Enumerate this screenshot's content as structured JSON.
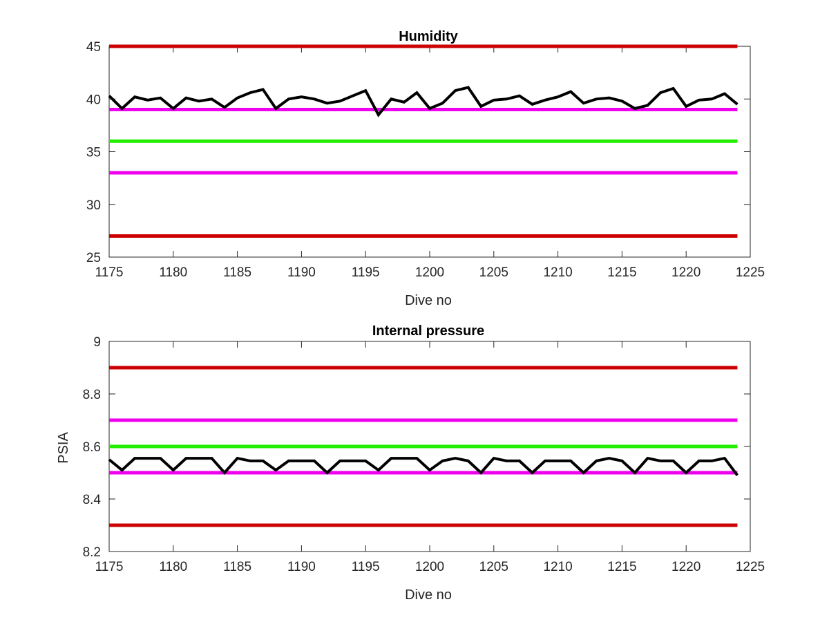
{
  "chart_data": [
    {
      "type": "line",
      "title": "Humidity",
      "xlabel": "Dive no",
      "ylabel": "",
      "xlim": [
        1175,
        1225
      ],
      "ylim": [
        25,
        45
      ],
      "xticks": [
        "1175",
        "1180",
        "1185",
        "1190",
        "1195",
        "1200",
        "1205",
        "1210",
        "1215",
        "1220",
        "1225"
      ],
      "yticks": [
        "25",
        "30",
        "35",
        "40",
        "45"
      ],
      "grid": false,
      "thresholds": [
        {
          "value": 45,
          "color": "#cc0000"
        },
        {
          "value": 39,
          "color": "#ee00ee"
        },
        {
          "value": 36,
          "color": "#22ee00"
        },
        {
          "value": 33,
          "color": "#ee00ee"
        },
        {
          "value": 27,
          "color": "#cc0000"
        }
      ],
      "threshold_range": [
        1175,
        1224
      ],
      "series": [
        {
          "color": "#000000",
          "x": [
            1175,
            1176,
            1177,
            1178,
            1179,
            1180,
            1181,
            1182,
            1183,
            1184,
            1185,
            1186,
            1187,
            1188,
            1189,
            1190,
            1191,
            1192,
            1193,
            1194,
            1195,
            1196,
            1197,
            1198,
            1199,
            1200,
            1201,
            1202,
            1203,
            1204,
            1205,
            1206,
            1207,
            1208,
            1209,
            1210,
            1211,
            1212,
            1213,
            1214,
            1215,
            1216,
            1217,
            1218,
            1219,
            1220,
            1221,
            1222,
            1223,
            1224
          ],
          "values": [
            40.3,
            39.1,
            40.2,
            39.9,
            40.1,
            39.1,
            40.1,
            39.8,
            40.0,
            39.2,
            40.1,
            40.6,
            40.9,
            39.1,
            40.0,
            40.2,
            40.0,
            39.6,
            39.8,
            40.3,
            40.8,
            38.5,
            40.0,
            39.7,
            40.6,
            39.1,
            39.6,
            40.8,
            41.1,
            39.3,
            39.9,
            40.0,
            40.3,
            39.5,
            39.9,
            40.2,
            40.7,
            39.6,
            40.0,
            40.1,
            39.8,
            39.1,
            39.4,
            40.6,
            41.0,
            39.3,
            39.9,
            40.0,
            40.5,
            39.5
          ]
        }
      ]
    },
    {
      "type": "line",
      "title": "Internal pressure",
      "xlabel": "Dive no",
      "ylabel": "PSIA",
      "xlim": [
        1175,
        1225
      ],
      "ylim": [
        8.2,
        9.0
      ],
      "xticks": [
        "1175",
        "1180",
        "1185",
        "1190",
        "1195",
        "1200",
        "1205",
        "1210",
        "1215",
        "1220",
        "1225"
      ],
      "yticks": [
        "8.2",
        "8.4",
        "8.6",
        "8.8",
        "9"
      ],
      "grid": false,
      "thresholds": [
        {
          "value": 8.9,
          "color": "#cc0000"
        },
        {
          "value": 8.7,
          "color": "#ee00ee"
        },
        {
          "value": 8.6,
          "color": "#22ee00"
        },
        {
          "value": 8.5,
          "color": "#ee00ee"
        },
        {
          "value": 8.3,
          "color": "#cc0000"
        }
      ],
      "threshold_range": [
        1175,
        1224
      ],
      "series": [
        {
          "color": "#000000",
          "x": [
            1175,
            1176,
            1177,
            1178,
            1179,
            1180,
            1181,
            1182,
            1183,
            1184,
            1185,
            1186,
            1187,
            1188,
            1189,
            1190,
            1191,
            1192,
            1193,
            1194,
            1195,
            1196,
            1197,
            1198,
            1199,
            1200,
            1201,
            1202,
            1203,
            1204,
            1205,
            1206,
            1207,
            1208,
            1209,
            1210,
            1211,
            1212,
            1213,
            1214,
            1215,
            1216,
            1217,
            1218,
            1219,
            1220,
            1221,
            1222,
            1223,
            1224
          ],
          "values": [
            8.55,
            8.51,
            8.555,
            8.555,
            8.555,
            8.51,
            8.555,
            8.555,
            8.555,
            8.5,
            8.555,
            8.545,
            8.545,
            8.51,
            8.545,
            8.545,
            8.545,
            8.5,
            8.545,
            8.545,
            8.545,
            8.51,
            8.555,
            8.555,
            8.555,
            8.51,
            8.545,
            8.555,
            8.545,
            8.5,
            8.555,
            8.545,
            8.545,
            8.5,
            8.545,
            8.545,
            8.545,
            8.5,
            8.545,
            8.555,
            8.545,
            8.5,
            8.555,
            8.545,
            8.545,
            8.5,
            8.545,
            8.545,
            8.555,
            8.49
          ]
        }
      ]
    }
  ]
}
